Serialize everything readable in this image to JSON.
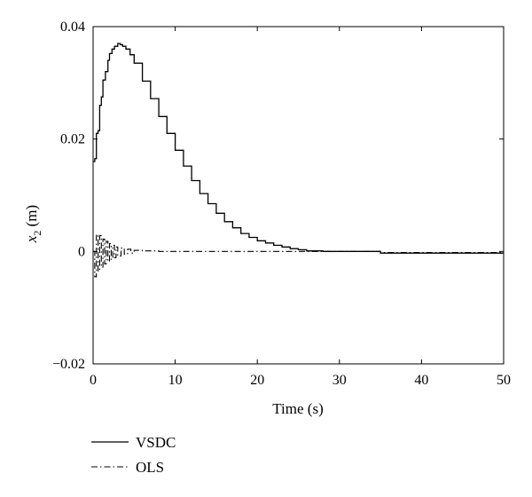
{
  "chart_data": {
    "type": "line",
    "title": "",
    "xlabel": "Time (s)",
    "ylabel": {
      "var": "x",
      "sub": "2",
      "unit": " (m)"
    },
    "xlim": [
      0,
      50
    ],
    "ylim": [
      -0.02,
      0.04
    ],
    "xticks": [
      0,
      10,
      20,
      30,
      40,
      50
    ],
    "xtick_labels": [
      "0",
      "10",
      "20",
      "30",
      "40",
      "50"
    ],
    "yticks": [
      -0.02,
      0,
      0.02,
      0.04
    ],
    "ytick_labels": [
      "−0.02",
      "0",
      "0.02",
      "0.04"
    ],
    "grid": false,
    "legend_position": "below plot, left",
    "series": [
      {
        "name": "VSDC",
        "line_style": "solid",
        "color": "#000000",
        "x": [
          0,
          0.2,
          0.4,
          0.6,
          0.8,
          1.0,
          1.2,
          1.5,
          1.8,
          2.0,
          2.3,
          2.6,
          3.0,
          3.3,
          3.6,
          4.0,
          4.5,
          5.0,
          6.0,
          7.0,
          8.0,
          9.0,
          10.0,
          11.0,
          12.0,
          13.0,
          14.0,
          15.0,
          16.0,
          17.0,
          18.0,
          19.0,
          20.0,
          21.0,
          22.0,
          23.0,
          24.0,
          25.0,
          26.0,
          28.0,
          30.0,
          35.0,
          40.0,
          45.0,
          50.0
        ],
        "y": [
          0.016,
          0.0165,
          0.021,
          0.0215,
          0.026,
          0.0275,
          0.0305,
          0.032,
          0.034,
          0.0352,
          0.036,
          0.0365,
          0.037,
          0.0368,
          0.0365,
          0.036,
          0.035,
          0.0335,
          0.0303,
          0.0272,
          0.024,
          0.021,
          0.018,
          0.0152,
          0.0126,
          0.0103,
          0.0085,
          0.0068,
          0.0053,
          0.0042,
          0.0032,
          0.0025,
          0.0019,
          0.0015,
          0.0011,
          0.0008,
          0.0005,
          0.0003,
          0.0001,
          0.0,
          0.0,
          -0.0003,
          -0.0003,
          -0.0003,
          -0.0003
        ]
      },
      {
        "name": "OLS",
        "line_style": "dash-dot",
        "color": "#000000",
        "x": [
          0,
          0.2,
          0.4,
          0.6,
          0.8,
          1.0,
          1.2,
          1.4,
          1.6,
          1.8,
          2.0,
          2.2,
          2.4,
          2.6,
          2.8,
          3.0,
          3.4,
          3.8,
          4.2,
          4.6,
          5.0,
          6.0,
          8.0,
          10.0,
          15.0,
          20.0,
          25.0,
          30.0,
          33.0,
          35.0,
          40.0,
          45.0,
          50.0
        ],
        "y": [
          0.0,
          -0.0045,
          0.003,
          -0.0035,
          0.0028,
          -0.0028,
          0.0022,
          -0.0022,
          0.0018,
          -0.0018,
          0.0014,
          -0.0014,
          0.0011,
          -0.0011,
          0.0008,
          -0.0008,
          0.0006,
          -0.0005,
          0.0004,
          -0.0003,
          0.0002,
          0.0001,
          0.0,
          0.0,
          0.0,
          0.0,
          0.0,
          0.0,
          0.0,
          -0.0002,
          -0.0002,
          -0.0002,
          -0.0002
        ]
      }
    ]
  }
}
